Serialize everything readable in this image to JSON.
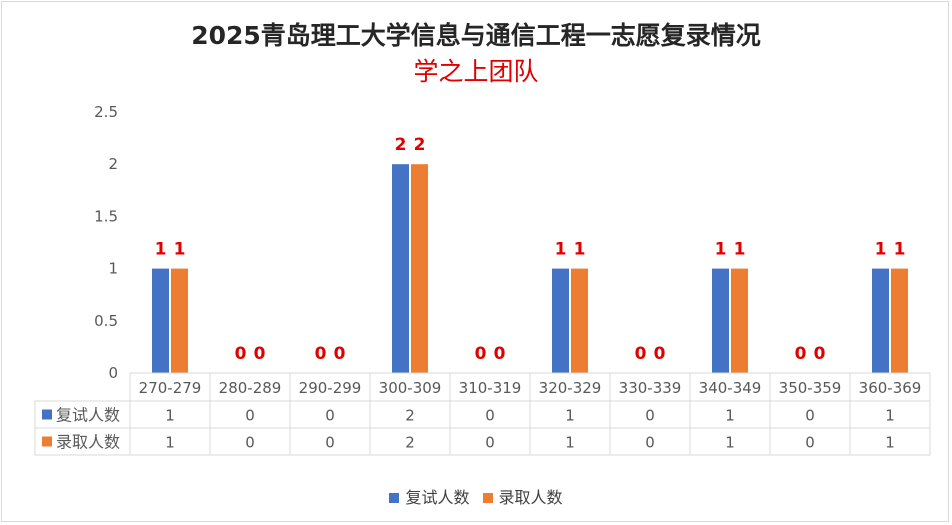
{
  "colors": {
    "series1": "#4472c4",
    "series2": "#ed7d31",
    "data_label": "#e00000",
    "axis_text": "#595959",
    "grid": "#d9d9d9"
  },
  "chart_data": {
    "type": "bar",
    "title": "2025青岛理工大学信息与通信工程一志愿复录情况",
    "subtitle": "学之上团队",
    "categories": [
      "270-279",
      "280-289",
      "290-299",
      "300-309",
      "310-319",
      "320-329",
      "330-339",
      "340-349",
      "350-359",
      "360-369"
    ],
    "series": [
      {
        "name": "复试人数",
        "values": [
          1,
          0,
          0,
          2,
          0,
          1,
          0,
          1,
          0,
          1
        ]
      },
      {
        "name": "录取人数",
        "values": [
          1,
          0,
          0,
          2,
          0,
          1,
          0,
          1,
          0,
          1
        ]
      }
    ],
    "y_ticks": [
      "0",
      "0.5",
      "1",
      "1.5",
      "2",
      "2.5"
    ],
    "ylim": [
      0,
      2.5
    ],
    "grid": false,
    "data_labels": true,
    "data_table": true,
    "legend_position": "bottom"
  }
}
